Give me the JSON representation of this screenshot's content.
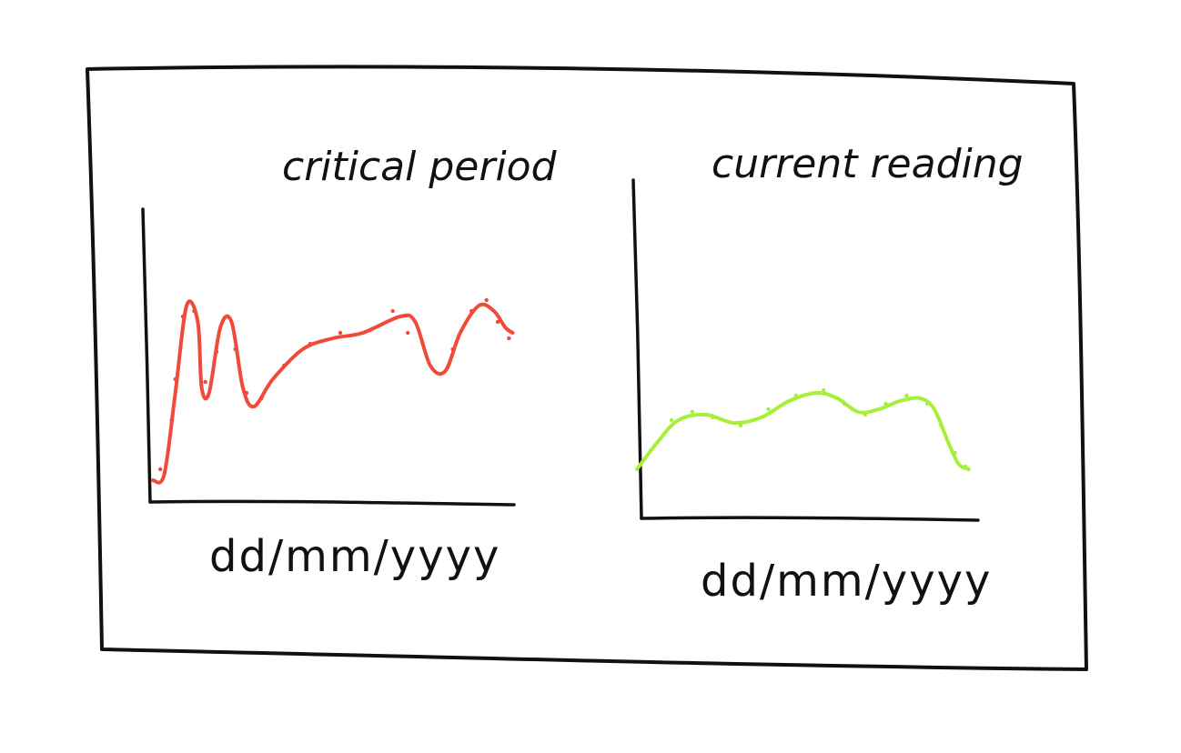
{
  "panels": [
    {
      "title": "critical period",
      "xlabel": "dd/mm/yyyy",
      "color": "#f04a3a",
      "curve": [
        [
          0,
          0.08
        ],
        [
          0.03,
          0.1
        ],
        [
          0.06,
          0.4
        ],
        [
          0.09,
          0.72
        ],
        [
          0.12,
          0.66
        ],
        [
          0.13,
          0.42
        ],
        [
          0.15,
          0.4
        ],
        [
          0.18,
          0.64
        ],
        [
          0.21,
          0.66
        ],
        [
          0.24,
          0.42
        ],
        [
          0.27,
          0.35
        ],
        [
          0.32,
          0.45
        ],
        [
          0.4,
          0.56
        ],
        [
          0.48,
          0.6
        ],
        [
          0.56,
          0.62
        ],
        [
          0.66,
          0.68
        ],
        [
          0.7,
          0.66
        ],
        [
          0.74,
          0.5
        ],
        [
          0.78,
          0.48
        ],
        [
          0.82,
          0.62
        ],
        [
          0.87,
          0.72
        ],
        [
          0.91,
          0.7
        ],
        [
          0.94,
          0.64
        ],
        [
          0.96,
          0.62
        ]
      ],
      "points": [
        [
          0.02,
          0.12
        ],
        [
          0.05,
          0.3
        ],
        [
          0.06,
          0.45
        ],
        [
          0.08,
          0.68
        ],
        [
          0.11,
          0.7
        ],
        [
          0.14,
          0.44
        ],
        [
          0.17,
          0.55
        ],
        [
          0.2,
          0.68
        ],
        [
          0.22,
          0.56
        ],
        [
          0.25,
          0.4
        ],
        [
          0.29,
          0.38
        ],
        [
          0.35,
          0.5
        ],
        [
          0.42,
          0.58
        ],
        [
          0.5,
          0.62
        ],
        [
          0.58,
          0.63
        ],
        [
          0.64,
          0.7
        ],
        [
          0.68,
          0.62
        ],
        [
          0.72,
          0.58
        ],
        [
          0.8,
          0.56
        ],
        [
          0.85,
          0.7
        ],
        [
          0.89,
          0.74
        ],
        [
          0.92,
          0.66
        ],
        [
          0.95,
          0.6
        ]
      ]
    },
    {
      "title": "current reading",
      "xlabel": "dd/mm/yyyy",
      "color": "#a6f03a",
      "curve": [
        [
          0,
          0.18
        ],
        [
          0.06,
          0.28
        ],
        [
          0.12,
          0.36
        ],
        [
          0.2,
          0.38
        ],
        [
          0.28,
          0.35
        ],
        [
          0.36,
          0.37
        ],
        [
          0.44,
          0.43
        ],
        [
          0.52,
          0.46
        ],
        [
          0.58,
          0.44
        ],
        [
          0.64,
          0.39
        ],
        [
          0.7,
          0.4
        ],
        [
          0.76,
          0.43
        ],
        [
          0.82,
          0.44
        ],
        [
          0.86,
          0.4
        ],
        [
          0.9,
          0.28
        ],
        [
          0.93,
          0.2
        ],
        [
          0.96,
          0.18
        ]
      ],
      "points": [
        [
          0.04,
          0.25
        ],
        [
          0.1,
          0.36
        ],
        [
          0.16,
          0.39
        ],
        [
          0.22,
          0.37
        ],
        [
          0.3,
          0.34
        ],
        [
          0.38,
          0.4
        ],
        [
          0.46,
          0.45
        ],
        [
          0.54,
          0.47
        ],
        [
          0.6,
          0.42
        ],
        [
          0.66,
          0.38
        ],
        [
          0.72,
          0.42
        ],
        [
          0.78,
          0.45
        ],
        [
          0.84,
          0.42
        ],
        [
          0.88,
          0.34
        ],
        [
          0.92,
          0.24
        ],
        [
          0.95,
          0.19
        ]
      ]
    }
  ]
}
